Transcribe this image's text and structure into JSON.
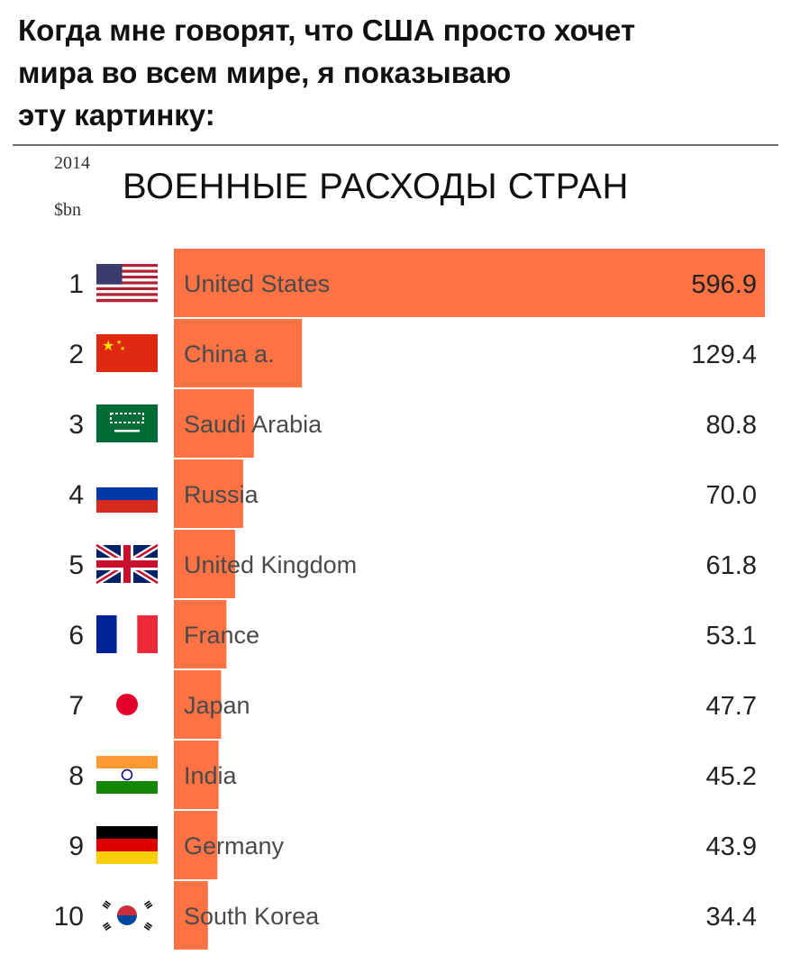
{
  "caption": {
    "lines": [
      "Когда мне говорят, что США просто хочет",
      "мира во всем мире, я показываю",
      "эту картинку:"
    ]
  },
  "chart_data": {
    "type": "bar",
    "title": "ВОЕННЫЕ РАСХОДЫ СТРАН",
    "year_label": "2014",
    "unit_label": "$bn",
    "bar_color": "#ff7244",
    "xlim": [
      0,
      596.9
    ],
    "categories": [
      "United States",
      "China a.",
      "Saudi Arabia",
      "Russia",
      "United Kingdom",
      "France",
      "Japan",
      "India",
      "Germany",
      "South Korea"
    ],
    "ranks": [
      "1",
      "2",
      "3",
      "4",
      "5",
      "6",
      "7",
      "8",
      "9",
      "10"
    ],
    "flags": [
      "us-flag-icon",
      "china-flag-icon",
      "saudi-arabia-flag-icon",
      "russia-flag-icon",
      "uk-flag-icon",
      "france-flag-icon",
      "japan-flag-icon",
      "india-flag-icon",
      "germany-flag-icon",
      "south-korea-flag-icon"
    ],
    "values": [
      596.9,
      129.4,
      80.8,
      70.0,
      61.8,
      53.1,
      47.7,
      45.2,
      43.9,
      34.4
    ],
    "value_labels": [
      "596.9",
      "129.4",
      "80.8",
      "70.0",
      "61.8",
      "53.1",
      "47.7",
      "45.2",
      "43.9",
      "34.4"
    ]
  }
}
